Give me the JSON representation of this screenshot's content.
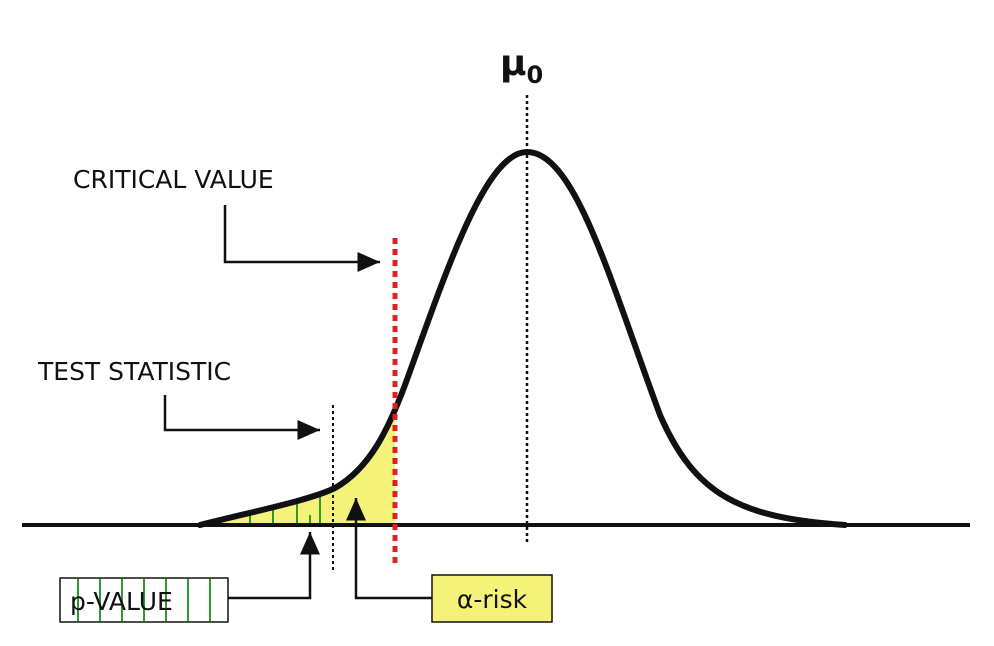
{
  "labels": {
    "mean": "μ",
    "mean_subscript": "0",
    "critical_value": "CRITICAL VALUE",
    "test_statistic": "TEST STATISTIC",
    "p_value": "p-VALUE",
    "alpha_risk": "α-risk"
  }
}
